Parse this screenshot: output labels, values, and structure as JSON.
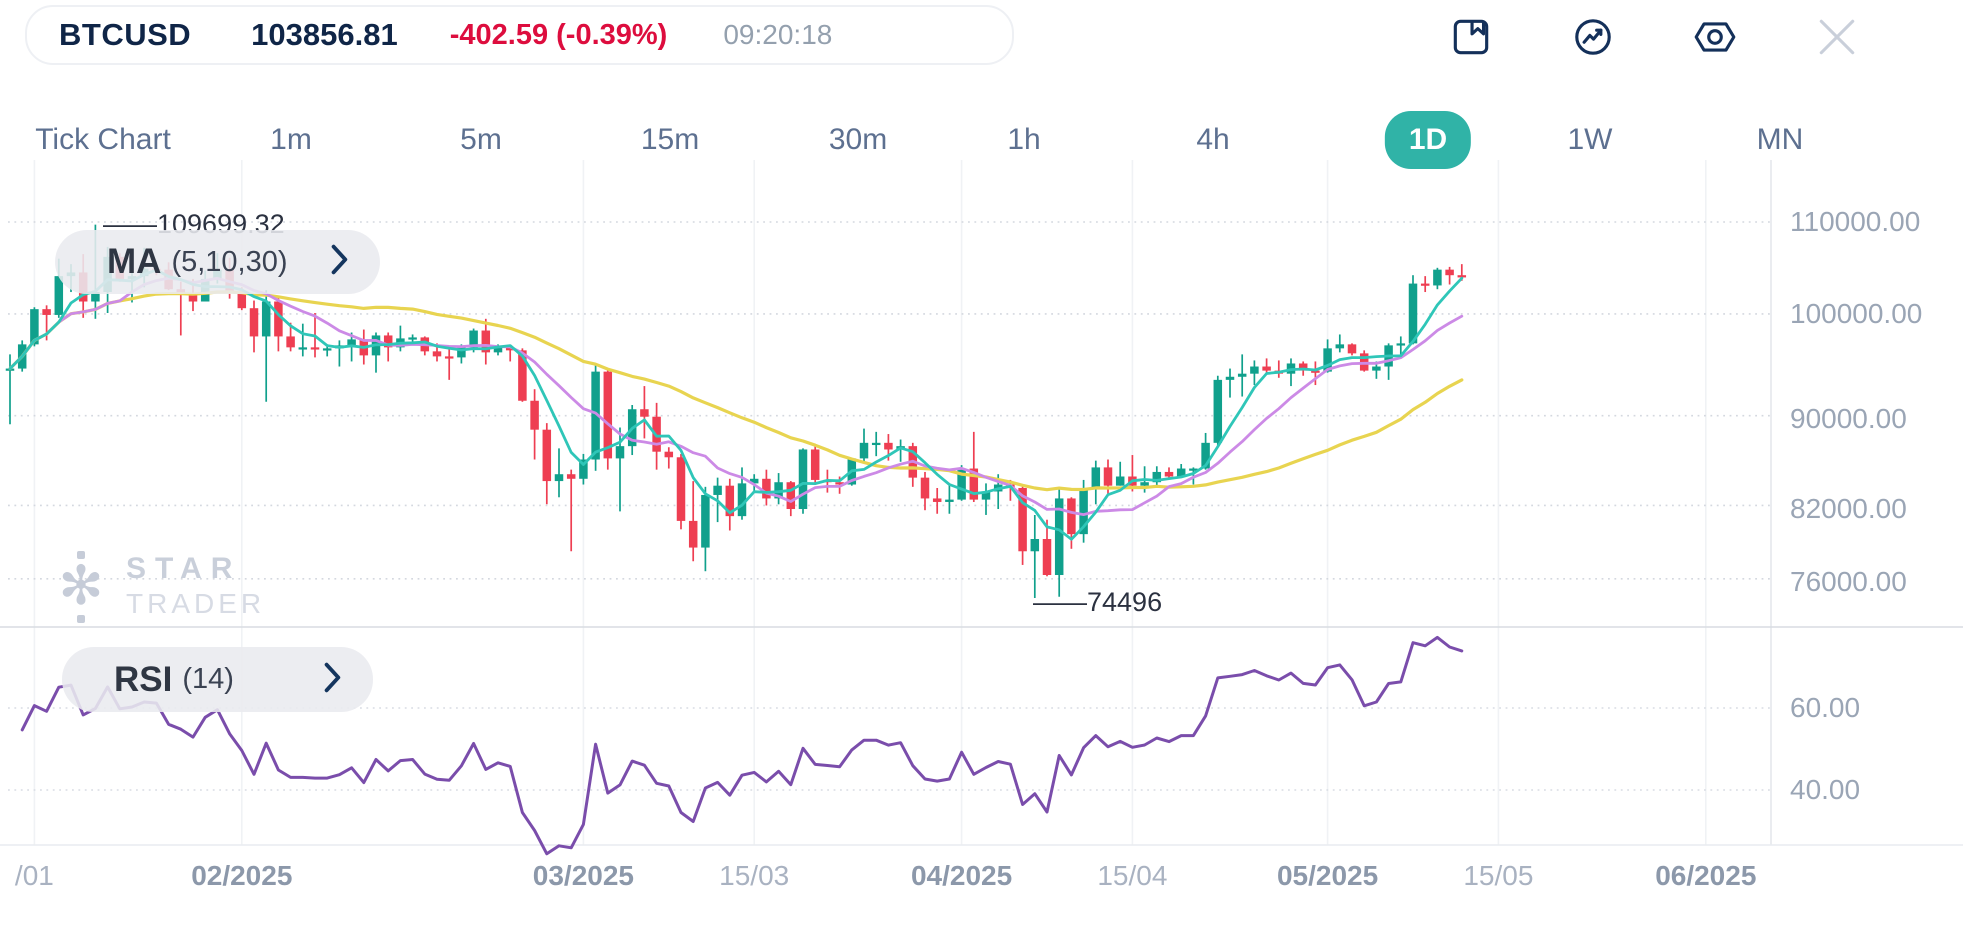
{
  "header": {
    "symbol": "BTCUSD",
    "price": "103856.81",
    "change": "-402.59 (-0.39%)",
    "time": "09:20:18",
    "icons": [
      "bookmark",
      "indicator-pulse",
      "settings-nut",
      "close"
    ]
  },
  "timeframes": {
    "items": [
      {
        "label": "Tick Chart",
        "active": false
      },
      {
        "label": "1m",
        "active": false
      },
      {
        "label": "5m",
        "active": false
      },
      {
        "label": "15m",
        "active": false
      },
      {
        "label": "30m",
        "active": false
      },
      {
        "label": "1h",
        "active": false
      },
      {
        "label": "4h",
        "active": false
      },
      {
        "label": "1D",
        "active": true
      },
      {
        "label": "1W",
        "active": false
      },
      {
        "label": "MN",
        "active": false
      }
    ]
  },
  "indicators": {
    "ma": {
      "name": "MA",
      "params": "(5,10,30)"
    },
    "rsi": {
      "name": "RSI",
      "params": "(14)"
    }
  },
  "watermark": {
    "line1": "STAR",
    "line2": "TRADER"
  },
  "colors": {
    "accent_teal": "#30b3a7",
    "negative_red": "#dd0d3e",
    "candle_up": "#10a08c",
    "candle_down": "#ee3e52",
    "ma5": "#2fc6b8",
    "ma10": "#cc8ae6",
    "ma30": "#e8d450",
    "rsi_line": "#7a4dab"
  },
  "chart_data": {
    "type": "candlestick",
    "symbol": "BTCUSD",
    "timeframe": "1D",
    "unit": "kUSD",
    "start_date": "2025-01-13",
    "interval_days": 1,
    "price_axis": {
      "scale": "log",
      "side": "right",
      "ticks": [
        110000,
        100000,
        90000,
        82000,
        76000
      ],
      "labels": [
        "110000.00",
        "100000.00",
        "90000.00",
        "82000.00",
        "76000.00"
      ]
    },
    "rsi_axis": {
      "ticks": [
        60,
        40
      ],
      "labels": [
        "60.00",
        "40.00"
      ]
    },
    "x_ticks": [
      {
        "label": "/01",
        "date": "2025-01-15",
        "bold": false
      },
      {
        "label": "02/2025",
        "date": "2025-02-01",
        "bold": true
      },
      {
        "label": "03/2025",
        "date": "2025-03-01",
        "bold": true
      },
      {
        "label": "15/03",
        "date": "2025-03-15",
        "bold": false
      },
      {
        "label": "04/2025",
        "date": "2025-04-01",
        "bold": true
      },
      {
        "label": "15/04",
        "date": "2025-04-15",
        "bold": false
      },
      {
        "label": "05/2025",
        "date": "2025-05-01",
        "bold": true
      },
      {
        "label": "15/05",
        "date": "2025-05-15",
        "bold": false
      },
      {
        "label": "06/2025",
        "date": "2025-06-01",
        "bold": true
      }
    ],
    "high_label": {
      "marker": "——",
      "value": "109699.32",
      "candle_index": 7
    },
    "low_label": {
      "marker": "——",
      "value": "74496",
      "candle_index": 84
    },
    "ma_periods": [
      5,
      10,
      30
    ],
    "rsi_period": 14,
    "grid": {
      "horizontal": "dotted",
      "vertical": "faint"
    },
    "candles": [
      [
        94.3,
        95.9,
        89.2,
        94.5
      ],
      [
        94.5,
        97.3,
        94.2,
        96.9
      ],
      [
        96.9,
        100.7,
        96.7,
        100.5
      ],
      [
        100.5,
        100.9,
        97.3,
        99.9
      ],
      [
        99.9,
        105.9,
        99.6,
        104.0
      ],
      [
        104.0,
        105.3,
        102.3,
        104.4
      ],
      [
        104.4,
        106.4,
        99.6,
        101.3
      ],
      [
        101.3,
        109.7,
        99.5,
        102.3
      ],
      [
        102.3,
        107.2,
        100.1,
        106.1
      ],
      [
        106.1,
        106.5,
        103.4,
        103.7
      ],
      [
        103.7,
        106.8,
        101.2,
        104.0
      ],
      [
        104.0,
        107.1,
        102.8,
        104.8
      ],
      [
        104.8,
        105.2,
        104.1,
        104.7
      ],
      [
        104.7,
        105.5,
        102.5,
        102.6
      ],
      [
        102.6,
        103.4,
        97.8,
        102.1
      ],
      [
        102.1,
        103.7,
        100.3,
        101.3
      ],
      [
        101.3,
        104.6,
        101.3,
        103.7
      ],
      [
        103.7,
        106.5,
        103.2,
        104.7
      ],
      [
        104.7,
        106.0,
        101.6,
        102.4
      ],
      [
        102.4,
        102.8,
        100.4,
        100.6
      ],
      [
        100.6,
        101.4,
        96.1,
        97.7
      ],
      [
        97.7,
        102.5,
        91.3,
        101.3
      ],
      [
        101.3,
        101.7,
        96.2,
        97.7
      ],
      [
        97.7,
        99.1,
        96.2,
        96.6
      ],
      [
        96.6,
        99.0,
        95.7,
        96.6
      ],
      [
        96.6,
        100.1,
        95.6,
        96.5
      ],
      [
        96.5,
        96.9,
        95.7,
        96.5
      ],
      [
        96.5,
        97.3,
        94.7,
        96.8
      ],
      [
        96.8,
        98.1,
        95.2,
        97.4
      ],
      [
        97.4,
        98.4,
        94.9,
        95.8
      ],
      [
        95.8,
        98.1,
        94.1,
        97.8
      ],
      [
        97.8,
        98.1,
        95.2,
        96.6
      ],
      [
        96.6,
        98.8,
        96.2,
        97.5
      ],
      [
        97.5,
        97.9,
        97.0,
        97.6
      ],
      [
        97.6,
        97.7,
        95.8,
        96.2
      ],
      [
        96.2,
        97.0,
        95.2,
        95.7
      ],
      [
        95.7,
        96.7,
        93.4,
        95.6
      ],
      [
        95.6,
        96.9,
        95.0,
        96.6
      ],
      [
        96.6,
        98.5,
        96.1,
        98.3
      ],
      [
        98.3,
        99.5,
        94.9,
        96.1
      ],
      [
        96.1,
        96.9,
        95.8,
        96.6
      ],
      [
        96.6,
        96.7,
        95.2,
        96.3
      ],
      [
        96.3,
        96.5,
        91.3,
        91.4
      ],
      [
        91.4,
        92.5,
        86.0,
        88.7
      ],
      [
        88.7,
        89.3,
        82.1,
        84.1
      ],
      [
        84.1,
        87.0,
        82.7,
        84.7
      ],
      [
        84.7,
        85.1,
        78.2,
        84.3
      ],
      [
        84.3,
        86.5,
        83.8,
        86.0
      ],
      [
        86.0,
        95.0,
        85.0,
        94.2
      ],
      [
        94.2,
        94.4,
        85.1,
        86.1
      ],
      [
        86.1,
        88.9,
        81.5,
        87.2
      ],
      [
        87.2,
        91.0,
        86.4,
        90.6
      ],
      [
        90.6,
        92.8,
        87.9,
        89.9
      ],
      [
        89.9,
        91.2,
        85.1,
        86.7
      ],
      [
        86.7,
        87.1,
        85.2,
        86.2
      ],
      [
        86.2,
        86.5,
        80.0,
        80.7
      ],
      [
        80.7,
        84.1,
        77.4,
        78.5
      ],
      [
        78.5,
        83.6,
        76.6,
        82.9
      ],
      [
        82.9,
        84.4,
        80.6,
        83.7
      ],
      [
        83.7,
        84.3,
        79.9,
        81.1
      ],
      [
        81.1,
        85.3,
        80.8,
        83.9
      ],
      [
        83.9,
        84.7,
        83.2,
        84.3
      ],
      [
        84.3,
        85.1,
        82.0,
        82.6
      ],
      [
        82.6,
        84.8,
        82.1,
        84.0
      ],
      [
        84.0,
        84.1,
        81.1,
        81.7
      ],
      [
        81.7,
        87.0,
        81.3,
        86.9
      ],
      [
        86.9,
        87.4,
        83.9,
        84.2
      ],
      [
        84.2,
        85.1,
        83.1,
        84.0
      ],
      [
        84.0,
        84.5,
        83.0,
        83.8
      ],
      [
        83.8,
        86.1,
        83.7,
        86.1
      ],
      [
        86.1,
        88.8,
        85.8,
        87.5
      ],
      [
        87.5,
        88.5,
        86.3,
        87.5
      ],
      [
        87.5,
        88.3,
        85.9,
        86.9
      ],
      [
        86.9,
        87.8,
        85.8,
        87.2
      ],
      [
        87.2,
        87.5,
        83.6,
        84.4
      ],
      [
        84.4,
        84.9,
        81.6,
        82.6
      ],
      [
        82.6,
        83.5,
        81.3,
        82.3
      ],
      [
        82.3,
        83.9,
        81.3,
        82.5
      ],
      [
        82.5,
        85.5,
        82.4,
        85.2
      ],
      [
        85.2,
        88.5,
        82.3,
        82.5
      ],
      [
        82.5,
        83.9,
        81.2,
        83.2
      ],
      [
        83.2,
        84.7,
        81.7,
        83.8
      ],
      [
        83.8,
        84.2,
        82.4,
        83.5
      ],
      [
        83.5,
        83.7,
        77.1,
        78.2
      ],
      [
        78.2,
        81.2,
        74.5,
        79.2
      ],
      [
        79.2,
        80.8,
        76.2,
        76.3
      ],
      [
        76.3,
        83.5,
        74.6,
        82.6
      ],
      [
        82.6,
        82.7,
        78.4,
        79.6
      ],
      [
        79.6,
        84.2,
        78.9,
        83.4
      ],
      [
        83.4,
        85.9,
        82.1,
        85.3
      ],
      [
        85.3,
        86.0,
        83.0,
        83.7
      ],
      [
        83.7,
        85.8,
        83.7,
        84.5
      ],
      [
        84.5,
        86.4,
        83.2,
        83.7
      ],
      [
        83.7,
        85.4,
        83.1,
        84.0
      ],
      [
        84.0,
        85.4,
        83.5,
        84.9
      ],
      [
        84.9,
        85.3,
        84.3,
        84.5
      ],
      [
        84.5,
        85.6,
        84.4,
        85.2
      ],
      [
        85.2,
        85.3,
        83.8,
        85.2
      ],
      [
        85.2,
        88.4,
        85.1,
        87.5
      ],
      [
        87.5,
        93.8,
        87.1,
        93.4
      ],
      [
        93.4,
        94.5,
        91.7,
        93.7
      ],
      [
        93.7,
        95.9,
        91.8,
        94.0
      ],
      [
        94.0,
        95.3,
        92.9,
        94.7
      ],
      [
        94.7,
        95.5,
        93.9,
        94.3
      ],
      [
        94.3,
        95.3,
        93.6,
        94.0
      ],
      [
        94.0,
        95.5,
        92.8,
        95.0
      ],
      [
        95.0,
        95.2,
        93.8,
        94.3
      ],
      [
        94.3,
        95.2,
        92.9,
        94.2
      ],
      [
        94.2,
        97.4,
        94.1,
        96.5
      ],
      [
        96.5,
        97.9,
        96.1,
        96.9
      ],
      [
        96.9,
        97.0,
        95.8,
        96.0
      ],
      [
        96.0,
        96.3,
        94.2,
        94.3
      ],
      [
        94.3,
        95.2,
        93.5,
        94.7
      ],
      [
        94.7,
        97.0,
        93.4,
        96.8
      ],
      [
        96.8,
        97.7,
        95.8,
        97.0
      ],
      [
        97.0,
        104.1,
        96.9,
        103.2
      ],
      [
        103.2,
        104.0,
        102.3,
        103.0
      ],
      [
        103.0,
        104.9,
        102.6,
        104.7
      ],
      [
        104.7,
        105.0,
        103.1,
        104.1
      ],
      [
        104.1,
        105.3,
        103.5,
        103.86
      ]
    ]
  }
}
